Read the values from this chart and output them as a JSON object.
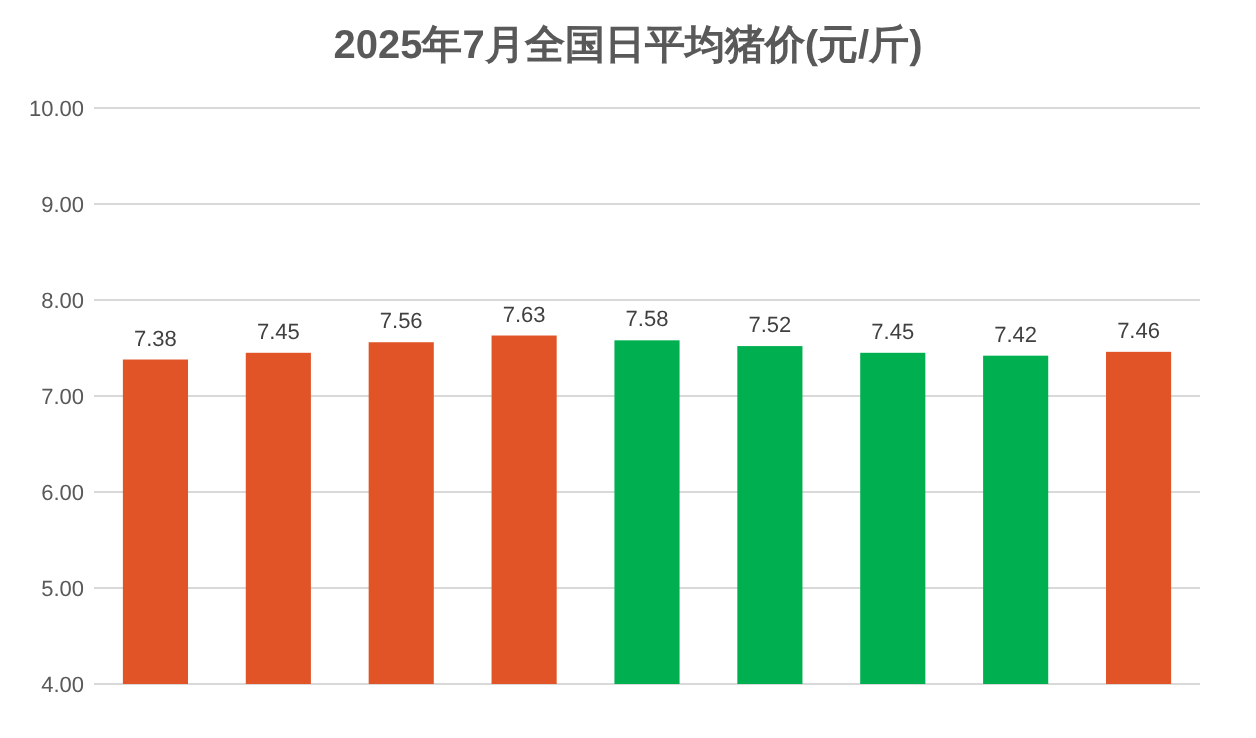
{
  "chart_data": {
    "type": "bar",
    "title": "2025年7月全国日平均猪价(元/斤)",
    "categories": [
      null,
      null,
      null,
      null,
      null,
      null,
      null,
      null,
      null
    ],
    "values": [
      7.38,
      7.45,
      7.56,
      7.63,
      7.58,
      7.52,
      7.45,
      7.42,
      7.46
    ],
    "colors": [
      "#e05427",
      "#e05427",
      "#e05427",
      "#e05427",
      "#00b050",
      "#00b050",
      "#00b050",
      "#00b050",
      "#e05427"
    ],
    "ylim": [
      4,
      10
    ],
    "yticks": [
      {
        "value": 4,
        "label": "4.00"
      },
      {
        "value": 5,
        "label": "5.00"
      },
      {
        "value": 6,
        "label": "6.00"
      },
      {
        "value": 7,
        "label": "7.00"
      },
      {
        "value": 8,
        "label": "8.00"
      },
      {
        "value": 9,
        "label": "9.00"
      },
      {
        "value": 10,
        "label": "10.00"
      }
    ],
    "grid": true,
    "data_labels": true
  }
}
